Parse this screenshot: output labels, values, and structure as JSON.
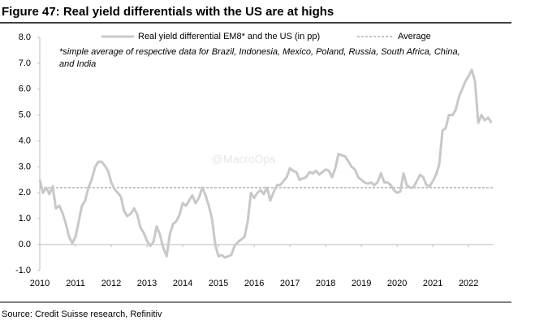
{
  "chart_data": {
    "type": "line",
    "title": "Figure 47: Real yield differentials with the US are at highs",
    "note": "*simple average of respective data for Brazil, Indonesia, Mexico, Poland, Russia, South Africa, China, and India",
    "source": "Source: Credit Suisse research, Refinitiv",
    "watermark": "@MacroOps",
    "x": [
      2010,
      2010.09,
      2010.18,
      2010.27,
      2010.36,
      2010.45,
      2010.55,
      2010.64,
      2010.73,
      2010.82,
      2010.91,
      2011,
      2011.09,
      2011.18,
      2011.27,
      2011.36,
      2011.45,
      2011.55,
      2011.64,
      2011.73,
      2011.82,
      2011.91,
      2012,
      2012.09,
      2012.18,
      2012.27,
      2012.36,
      2012.45,
      2012.55,
      2012.64,
      2012.73,
      2012.82,
      2012.91,
      2013,
      2013.09,
      2013.18,
      2013.27,
      2013.36,
      2013.45,
      2013.55,
      2013.64,
      2013.73,
      2013.82,
      2013.91,
      2014,
      2014.09,
      2014.18,
      2014.27,
      2014.36,
      2014.45,
      2014.55,
      2014.64,
      2014.73,
      2014.82,
      2014.91,
      2015,
      2015.09,
      2015.18,
      2015.27,
      2015.36,
      2015.45,
      2015.55,
      2015.64,
      2015.73,
      2015.82,
      2015.91,
      2016,
      2016.09,
      2016.18,
      2016.27,
      2016.36,
      2016.45,
      2016.55,
      2016.64,
      2016.73,
      2016.82,
      2016.91,
      2017,
      2017.09,
      2017.18,
      2017.27,
      2017.36,
      2017.45,
      2017.55,
      2017.64,
      2017.73,
      2017.82,
      2017.91,
      2018,
      2018.09,
      2018.18,
      2018.27,
      2018.36,
      2018.45,
      2018.55,
      2018.64,
      2018.73,
      2018.82,
      2018.91,
      2019,
      2019.09,
      2019.18,
      2019.27,
      2019.36,
      2019.45,
      2019.55,
      2019.64,
      2019.73,
      2019.82,
      2019.91,
      2020,
      2020.09,
      2020.18,
      2020.27,
      2020.36,
      2020.45,
      2020.55,
      2020.64,
      2020.73,
      2020.82,
      2020.91,
      2021,
      2021.09,
      2021.18,
      2021.27,
      2021.36,
      2021.45,
      2021.55,
      2021.64,
      2021.73,
      2021.82,
      2021.91,
      2022,
      2022.09,
      2022.18,
      2022.27,
      2022.36,
      2022.45,
      2022.55,
      2022.64
    ],
    "series": [
      {
        "name": "Real yield differential EM8* and the US (in pp)",
        "color": "#c8c8c8",
        "values": [
          2.5,
          2.0,
          2.2,
          1.95,
          2.25,
          1.4,
          1.5,
          1.2,
          0.8,
          0.3,
          0.05,
          0.3,
          0.9,
          1.5,
          1.7,
          2.2,
          2.5,
          3.0,
          3.2,
          3.2,
          3.05,
          2.85,
          2.4,
          2.15,
          2.0,
          1.85,
          1.3,
          1.1,
          1.2,
          1.4,
          1.15,
          0.65,
          0.45,
          0.15,
          -0.05,
          0.1,
          0.7,
          0.4,
          -0.1,
          -0.45,
          0.4,
          0.8,
          0.9,
          1.15,
          1.6,
          1.5,
          1.7,
          1.9,
          1.6,
          1.8,
          2.2,
          1.9,
          1.5,
          1.0,
          0.0,
          -0.45,
          -0.4,
          -0.5,
          -0.45,
          -0.4,
          -0.05,
          0.1,
          0.2,
          0.3,
          0.9,
          2.0,
          1.8,
          2.0,
          2.1,
          1.95,
          2.2,
          1.7,
          2.05,
          2.3,
          2.3,
          2.45,
          2.6,
          2.95,
          2.85,
          2.8,
          2.5,
          2.55,
          2.6,
          2.8,
          2.75,
          2.85,
          2.7,
          2.8,
          2.9,
          2.85,
          2.6,
          2.95,
          3.5,
          3.45,
          3.4,
          3.2,
          3.0,
          2.9,
          2.6,
          2.5,
          2.4,
          2.35,
          2.4,
          2.3,
          2.4,
          2.75,
          2.4,
          2.4,
          2.3,
          2.1,
          2.0,
          2.05,
          2.75,
          2.3,
          2.2,
          2.2,
          2.45,
          2.7,
          2.6,
          2.3,
          2.25,
          2.45,
          2.7,
          3.1,
          4.4,
          4.5,
          5.0,
          5.0,
          5.2,
          5.7,
          6.0,
          6.3,
          6.5,
          6.75,
          6.3,
          4.7,
          5.0,
          4.8,
          4.9,
          4.7
        ]
      }
    ],
    "reference_line": {
      "name": "Average",
      "value": 2.2,
      "color": "#888888"
    },
    "xlim": [
      2010,
      2022.7
    ],
    "xticks": [
      2010,
      2011,
      2012,
      2013,
      2014,
      2015,
      2016,
      2017,
      2018,
      2019,
      2020,
      2021,
      2022
    ],
    "ylim": [
      -1,
      8
    ],
    "yticks": [
      {
        "value": -1,
        "label": "-1.0"
      },
      {
        "value": 0,
        "label": "0.0"
      },
      {
        "value": 1,
        "label": "1.0"
      },
      {
        "value": 2,
        "label": "2.0"
      },
      {
        "value": 3,
        "label": "3.0"
      },
      {
        "value": 4,
        "label": "4.0"
      },
      {
        "value": 5,
        "label": "5.0"
      },
      {
        "value": 6,
        "label": "6.0"
      },
      {
        "value": 7,
        "label": "7.0"
      },
      {
        "value": 8,
        "label": "8.0"
      }
    ]
  }
}
